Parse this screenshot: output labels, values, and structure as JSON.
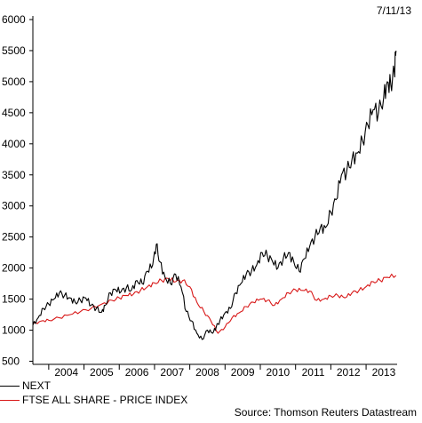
{
  "header": {
    "date": "7/11/13"
  },
  "source": "Source: Thomson Reuters Datastream",
  "colors": {
    "axis": "#000000",
    "next": "#000000",
    "ftse": "#d81818"
  },
  "chart_data": {
    "type": "line",
    "title": "",
    "xlabel": "",
    "ylabel": "",
    "xlim": [
      2003.55,
      2013.88
    ],
    "ylim": [
      450,
      6000
    ],
    "y_ticks": [
      500,
      1000,
      1500,
      2000,
      2500,
      3000,
      3500,
      4000,
      4500,
      5000,
      5500,
      6000
    ],
    "x_tick_labels": [
      "2004",
      "2005",
      "2006",
      "2007",
      "2008",
      "2009",
      "2010",
      "2011",
      "2012",
      "2013"
    ],
    "grid": false,
    "legend_position": "bottom-left",
    "series": [
      {
        "name": "NEXT",
        "color": "#000000",
        "x": [
          2003.55,
          2003.7,
          2003.85,
          2004.0,
          2004.15,
          2004.3,
          2004.45,
          2004.6,
          2004.75,
          2004.9,
          2005.05,
          2005.2,
          2005.35,
          2005.5,
          2005.6,
          2005.75,
          2005.9,
          2006.05,
          2006.2,
          2006.35,
          2006.5,
          2006.65,
          2006.8,
          2006.95,
          2007.05,
          2007.15,
          2007.3,
          2007.45,
          2007.6,
          2007.75,
          2007.9,
          2008.05,
          2008.2,
          2008.35,
          2008.5,
          2008.65,
          2008.75,
          2008.85,
          2009.0,
          2009.15,
          2009.3,
          2009.45,
          2009.6,
          2009.75,
          2009.9,
          2010.05,
          2010.2,
          2010.35,
          2010.5,
          2010.65,
          2010.8,
          2010.95,
          2011.1,
          2011.25,
          2011.4,
          2011.55,
          2011.7,
          2011.85,
          2012.0,
          2012.15,
          2012.3,
          2012.45,
          2012.6,
          2012.75,
          2012.9,
          2013.05,
          2013.2,
          2013.35,
          2013.5,
          2013.6,
          2013.7,
          2013.8,
          2013.85
        ],
        "values": [
          1080,
          1200,
          1350,
          1420,
          1500,
          1600,
          1560,
          1520,
          1450,
          1480,
          1520,
          1400,
          1350,
          1290,
          1400,
          1600,
          1650,
          1620,
          1680,
          1650,
          1800,
          1750,
          1950,
          2050,
          2380,
          2100,
          1850,
          1750,
          1900,
          1700,
          1300,
          1150,
          950,
          850,
          1000,
          950,
          1050,
          1150,
          1280,
          1350,
          1600,
          1750,
          1900,
          1950,
          2050,
          2250,
          2200,
          2100,
          2000,
          2150,
          2250,
          2100,
          1950,
          2150,
          2350,
          2500,
          2650,
          2650,
          2900,
          3100,
          3500,
          3550,
          3750,
          3850,
          4050,
          4300,
          4550,
          4500,
          4750,
          5000,
          4950,
          5150,
          5500
        ]
      },
      {
        "name": "FTSE ALL SHARE - PRICE INDEX",
        "color": "#d81818",
        "x": [
          2003.55,
          2003.8,
          2004.0,
          2004.3,
          2004.6,
          2004.9,
          2005.2,
          2005.5,
          2005.8,
          2006.0,
          2006.2,
          2006.4,
          2006.6,
          2006.8,
          2007.0,
          2007.2,
          2007.4,
          2007.6,
          2007.8,
          2008.0,
          2008.2,
          2008.4,
          2008.6,
          2008.8,
          2009.0,
          2009.2,
          2009.4,
          2009.6,
          2009.8,
          2010.0,
          2010.2,
          2010.4,
          2010.6,
          2010.8,
          2011.0,
          2011.2,
          2011.4,
          2011.6,
          2011.8,
          2012.0,
          2012.2,
          2012.4,
          2012.6,
          2012.8,
          2013.0,
          2013.2,
          2013.4,
          2013.6,
          2013.85
        ],
        "values": [
          1100,
          1150,
          1160,
          1200,
          1250,
          1300,
          1350,
          1420,
          1480,
          1520,
          1560,
          1580,
          1640,
          1700,
          1760,
          1800,
          1830,
          1780,
          1800,
          1700,
          1450,
          1300,
          1150,
          950,
          1050,
          1200,
          1280,
          1380,
          1450,
          1500,
          1480,
          1400,
          1500,
          1600,
          1650,
          1640,
          1630,
          1480,
          1500,
          1550,
          1560,
          1520,
          1600,
          1640,
          1700,
          1780,
          1800,
          1850,
          1880
        ]
      }
    ]
  },
  "legend": [
    {
      "label": "NEXT",
      "color": "#000000"
    },
    {
      "label": "FTSE ALL SHARE - PRICE INDEX",
      "color": "#d81818"
    }
  ]
}
